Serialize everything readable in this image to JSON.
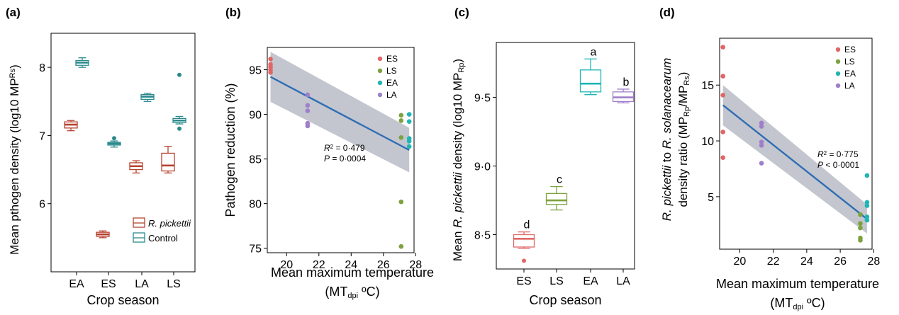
{
  "chart_data": [
    {
      "panel_label": "(a)",
      "type": "box",
      "ylabel": "Mean pthogen density (log10 MP",
      "ylabel_sub": "Rs",
      "ylabel_end": ")",
      "xlabel": "Crop season",
      "categories": [
        "EA",
        "ES",
        "LA",
        "LS"
      ],
      "ylim": [
        5.0,
        8.5
      ],
      "yticks": [
        6,
        7,
        8
      ],
      "legend": {
        "placement": "bottom-right",
        "entries": [
          {
            "name": "R. pickettii",
            "italic": true,
            "color": "#b5432f"
          },
          {
            "name": "Control",
            "italic": false,
            "color": "#2b8a8c"
          }
        ]
      },
      "series": [
        {
          "name": "R. pickettii",
          "color": "#b5432f",
          "boxes": [
            {
              "q1": 7.11,
              "median": 7.16,
              "q3": 7.2,
              "min": 7.07,
              "max": 7.22,
              "outliers": []
            },
            {
              "q1": 5.52,
              "median": 5.55,
              "q3": 5.58,
              "min": 5.5,
              "max": 5.6,
              "outliers": []
            },
            {
              "q1": 6.5,
              "median": 6.55,
              "q3": 6.6,
              "min": 6.45,
              "max": 6.63,
              "outliers": []
            },
            {
              "q1": 6.48,
              "median": 6.56,
              "q3": 6.74,
              "min": 6.45,
              "max": 6.84,
              "outliers": []
            }
          ]
        },
        {
          "name": "Control",
          "color": "#2b8a8c",
          "boxes": [
            {
              "q1": 8.03,
              "median": 8.07,
              "q3": 8.1,
              "min": 8.0,
              "max": 8.14,
              "outliers": []
            },
            {
              "q1": 6.86,
              "median": 6.88,
              "q3": 6.9,
              "min": 6.83,
              "max": 6.92,
              "outliers": [
                6.96
              ]
            },
            {
              "q1": 7.53,
              "median": 7.57,
              "q3": 7.6,
              "min": 7.5,
              "max": 7.62,
              "outliers": []
            },
            {
              "q1": 7.19,
              "median": 7.22,
              "q3": 7.25,
              "min": 7.17,
              "max": 7.28,
              "outliers": [
                7.89,
                7.1
              ]
            }
          ]
        }
      ]
    },
    {
      "panel_label": "(b)",
      "type": "scatter",
      "ylabel": "Pathogen reduction (%)",
      "xlabel": "Mean maximum temperature",
      "xlabel2": "(MT",
      "xlabel2_sub": "dpi",
      "xlabel2_end": " ºC)",
      "xlim": [
        18.8,
        27.9
      ],
      "ylim": [
        74.5,
        97.5
      ],
      "xticks": [
        20,
        22,
        24,
        26,
        28
      ],
      "yticks": [
        75,
        80,
        85,
        90,
        95
      ],
      "legend": {
        "placement": "top-right",
        "entries": [
          "ES",
          "LS",
          "EA",
          "LA"
        ]
      },
      "annotation": {
        "r2_label": "R",
        "r2_value": " = 0·479",
        "p_label": "P",
        "p_value": " = 0·0004"
      },
      "fit": {
        "x": [
          19.0,
          27.6
        ],
        "y": [
          94.2,
          86.0
        ],
        "band_upper": [
          97.0,
          88.5
        ],
        "band_lower": [
          91.4,
          83.5
        ]
      },
      "series": [
        {
          "name": "ES",
          "color": "#e06666",
          "points": [
            [
              19.0,
              96.2
            ],
            [
              19.0,
              95.6
            ],
            [
              19.0,
              95.3
            ],
            [
              19.0,
              95.0
            ],
            [
              19.0,
              94.7
            ]
          ]
        },
        {
          "name": "LS",
          "color": "#7ba23f",
          "points": [
            [
              27.1,
              89.9
            ],
            [
              27.1,
              89.3
            ],
            [
              27.1,
              87.4
            ],
            [
              27.1,
              80.2
            ],
            [
              27.1,
              75.2
            ]
          ]
        },
        {
          "name": "EA",
          "color": "#1fb5b5",
          "points": [
            [
              27.6,
              90.0
            ],
            [
              27.6,
              89.2
            ],
            [
              27.6,
              87.3
            ],
            [
              27.6,
              87.0
            ],
            [
              27.6,
              86.4
            ]
          ]
        },
        {
          "name": "LA",
          "color": "#9e7fc9",
          "points": [
            [
              21.3,
              92.2
            ],
            [
              21.3,
              91.0
            ],
            [
              21.3,
              90.4
            ],
            [
              21.3,
              89.0
            ],
            [
              21.3,
              88.7
            ]
          ]
        }
      ]
    },
    {
      "panel_label": "(c)",
      "type": "box",
      "ylabel": "Mean ",
      "ylabel_italic": "R. pickettii",
      "ylabel_rest": " density (log10 MP",
      "ylabel_sub": "Rp",
      "ylabel_end": ")",
      "xlabel": "Crop season",
      "categories": [
        "ES",
        "LS",
        "EA",
        "LA"
      ],
      "ylim": [
        8.25,
        9.9
      ],
      "yticks": [
        8.5,
        9.0,
        9.5
      ],
      "ytick_labels": [
        "8·5",
        "9·0",
        "9·5"
      ],
      "letters": [
        "d",
        "c",
        "a",
        "b"
      ],
      "series": [
        {
          "name": "",
          "boxes": [
            {
              "color": "#e06666",
              "q1": 8.41,
              "median": 8.47,
              "q3": 8.5,
              "min": 8.4,
              "max": 8.52,
              "outliers": [
                8.31
              ]
            },
            {
              "color": "#7ba23f",
              "q1": 8.72,
              "median": 8.75,
              "q3": 8.8,
              "min": 8.68,
              "max": 8.85,
              "outliers": []
            },
            {
              "color": "#1fb5b5",
              "q1": 9.54,
              "median": 9.6,
              "q3": 9.7,
              "min": 9.52,
              "max": 9.78,
              "outliers": []
            },
            {
              "color": "#9e7fc9",
              "q1": 9.47,
              "median": 9.5,
              "q3": 9.54,
              "min": 9.46,
              "max": 9.56,
              "outliers": []
            }
          ]
        }
      ]
    },
    {
      "panel_label": "(d)",
      "type": "scatter",
      "ylabel_line1_a": "R. pickettii",
      "ylabel_line1_b": " to ",
      "ylabel_line1_c": "R. solanacearum",
      "ylabel_line2": "density ratio (MP",
      "ylabel_line2_sub1": "Rp",
      "ylabel_line2_mid": "/MP",
      "ylabel_line2_sub2": "Rs",
      "ylabel_line2_end": ")",
      "xlabel": "Mean maximum temperature",
      "xlabel2": "(MT",
      "xlabel2_sub": "dpi",
      "xlabel2_end": " ºC)",
      "xlim": [
        18.8,
        27.9
      ],
      "ylim": [
        0.3,
        19.2
      ],
      "xticks": [
        20,
        22,
        24,
        26,
        28
      ],
      "yticks": [
        5,
        10,
        15
      ],
      "legend": {
        "placement": "top-right",
        "entries": [
          "ES",
          "LS",
          "EA",
          "LA"
        ]
      },
      "annotation": {
        "r2_label": "R",
        "r2_value": " = 0·775",
        "p_label": "P",
        "p_value": " < 0·0001"
      },
      "fit": {
        "x": [
          19.0,
          27.6
        ],
        "y": [
          13.2,
          3.0
        ],
        "band_upper": [
          15.0,
          4.3
        ],
        "band_lower": [
          11.4,
          1.7
        ]
      },
      "series": [
        {
          "name": "ES",
          "color": "#e06666",
          "points": [
            [
              19.0,
              18.4
            ],
            [
              19.0,
              15.8
            ],
            [
              19.0,
              14.1
            ],
            [
              19.0,
              10.8
            ],
            [
              19.0,
              8.5
            ]
          ]
        },
        {
          "name": "LS",
          "color": "#7ba23f",
          "points": [
            [
              27.2,
              2.6
            ],
            [
              27.2,
              2.2
            ],
            [
              27.2,
              1.3
            ],
            [
              27.2,
              1.1
            ],
            [
              27.2,
              3.4
            ]
          ]
        },
        {
          "name": "EA",
          "color": "#1fb5b5",
          "points": [
            [
              27.6,
              6.9
            ],
            [
              27.6,
              4.5
            ],
            [
              27.6,
              4.2
            ],
            [
              27.6,
              3.2
            ],
            [
              27.6,
              2.9
            ]
          ]
        },
        {
          "name": "LA",
          "color": "#9e7fc9",
          "points": [
            [
              21.3,
              11.6
            ],
            [
              21.3,
              11.3
            ],
            [
              21.3,
              9.9
            ],
            [
              21.3,
              9.6
            ],
            [
              21.3,
              8.0
            ]
          ]
        }
      ]
    }
  ]
}
